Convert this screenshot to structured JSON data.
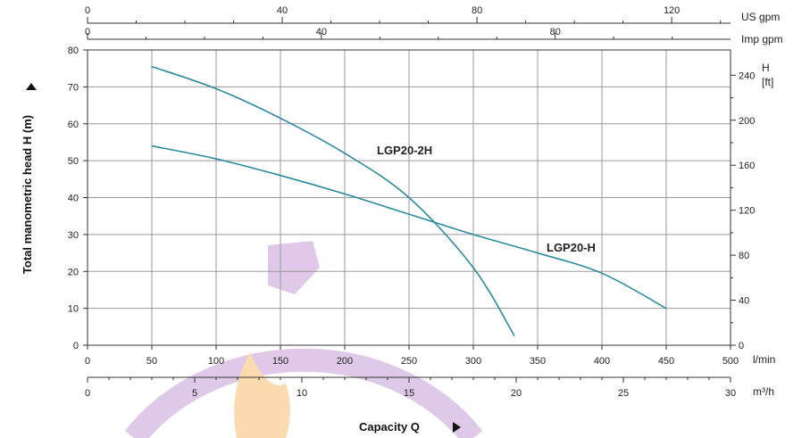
{
  "colors": {
    "curve": "#2a8a9e",
    "grid": "#9a9a9a",
    "axis": "#333333",
    "watermark_purple": "#dcc3e6",
    "watermark_orange": "#fbd7a8"
  },
  "chart_data": {
    "type": "line",
    "title": "",
    "xlabel": "Capacity Q",
    "ylabel": "Total manometric head H (m)",
    "x_unit": "l/min",
    "xlim": [
      0,
      500
    ],
    "ylim": [
      0,
      80
    ],
    "x_ticks": [
      0,
      50,
      100,
      150,
      200,
      250,
      300,
      350,
      400,
      450,
      500
    ],
    "y_ticks": [
      0,
      10,
      20,
      30,
      40,
      50,
      60,
      70,
      80
    ],
    "grid": true,
    "secondary_axes": {
      "us_gpm": {
        "label": "US gpm",
        "ticks": [
          0,
          40,
          80,
          120
        ]
      },
      "imp_gpm": {
        "label": "Imp gpm",
        "ticks": [
          0,
          40,
          80
        ]
      },
      "m3h": {
        "label": "m³/h",
        "ticks": [
          0,
          5,
          10,
          15,
          20,
          25,
          30
        ]
      },
      "ft": {
        "label_top": "H",
        "label_bottom": "[ft]",
        "ticks": [
          0,
          40,
          80,
          120,
          160,
          200,
          240
        ]
      }
    },
    "series": [
      {
        "name": "LGP20-2H",
        "x": [
          50,
          100,
          150,
          200,
          250,
          300,
          332
        ],
        "y": [
          75.5,
          69.5,
          61.5,
          52,
          40,
          21,
          2.5
        ]
      },
      {
        "name": "LGP20-H",
        "x": [
          50,
          100,
          150,
          200,
          250,
          300,
          350,
          400,
          450
        ],
        "y": [
          54,
          50.5,
          46,
          41,
          35.5,
          30,
          25,
          19.5,
          10
        ]
      }
    ]
  }
}
